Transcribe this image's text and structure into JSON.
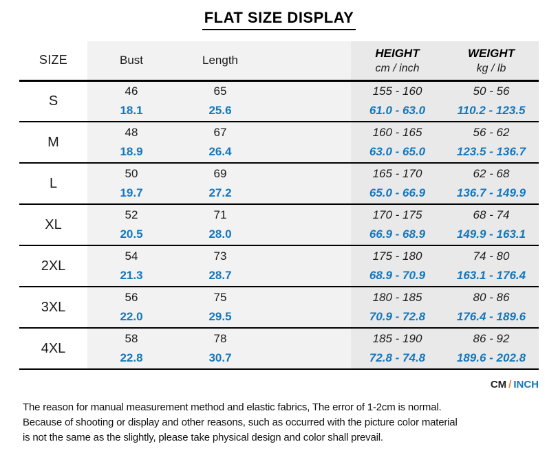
{
  "title": "FLAT SIZE DISPLAY",
  "chart_data": {
    "type": "table",
    "title": "FLAT SIZE DISPLAY",
    "columns": [
      "SIZE",
      "Bust",
      "Length",
      "HEIGHT cm / inch",
      "WEIGHT kg / lb"
    ],
    "units_note": "first line of each cell is CM, second line is INCH (blue)",
    "rows": [
      {
        "size": "S",
        "bust_cm": "46",
        "bust_in": "18.1",
        "length_cm": "65",
        "length_in": "25.6",
        "height_cm": "155 - 160",
        "height_in": "61.0 - 63.0",
        "weight_cm": "50 - 56",
        "weight_in": "110.2 - 123.5"
      },
      {
        "size": "M",
        "bust_cm": "48",
        "bust_in": "18.9",
        "length_cm": "67",
        "length_in": "26.4",
        "height_cm": "160 - 165",
        "height_in": "63.0 - 65.0",
        "weight_cm": "56 - 62",
        "weight_in": "123.5 - 136.7"
      },
      {
        "size": "L",
        "bust_cm": "50",
        "bust_in": "19.7",
        "length_cm": "69",
        "length_in": "27.2",
        "height_cm": "165 - 170",
        "height_in": "65.0 - 66.9",
        "weight_cm": "62 - 68",
        "weight_in": "136.7 - 149.9"
      },
      {
        "size": "XL",
        "bust_cm": "52",
        "bust_in": "20.5",
        "length_cm": "71",
        "length_in": "28.0",
        "height_cm": "170 - 175",
        "height_in": "66.9 - 68.9",
        "weight_cm": "68 - 74",
        "weight_in": "149.9 - 163.1"
      },
      {
        "size": "2XL",
        "bust_cm": "54",
        "bust_in": "21.3",
        "length_cm": "73",
        "length_in": "28.7",
        "height_cm": "175 - 180",
        "height_in": "68.9 - 70.9",
        "weight_cm": "74 - 80",
        "weight_in": "163.1 - 176.4"
      },
      {
        "size": "3XL",
        "bust_cm": "56",
        "bust_in": "22.0",
        "length_cm": "75",
        "length_in": "29.5",
        "height_cm": "180 - 185",
        "height_in": "70.9 - 72.8",
        "weight_cm": "80 - 86",
        "weight_in": "176.4 - 189.6"
      },
      {
        "size": "4XL",
        "bust_cm": "58",
        "bust_in": "22.8",
        "length_cm": "78",
        "length_in": "30.7",
        "height_cm": "185 - 190",
        "height_in": "72.8 - 74.8",
        "weight_cm": "86 - 92",
        "weight_in": "189.6 - 202.8"
      }
    ]
  },
  "header": {
    "size": "SIZE",
    "bust": "Bust",
    "length": "Length",
    "height": "HEIGHT",
    "height_sub": "cm / inch",
    "weight": "WEIGHT",
    "weight_sub": "kg / lb"
  },
  "legend": {
    "cm": "CM",
    "sep": "/",
    "inch": "INCH"
  },
  "footer": {
    "lines": [
      "The reason for manual measurement method and elastic fabrics, The error of 1-2cm is normal.",
      "Because of shooting or display and other reasons, such as occurred with the picture color material",
      "is not the same as the slightly, please take physical design and color shall prevail."
    ]
  },
  "colors": {
    "inch_blue": "#1277bd",
    "slash_orange": "#ed7d31",
    "col_light_bg": "#f2f2f2",
    "col_dark_bg": "#e9e9e9",
    "text_black": "#1a1a1a"
  }
}
